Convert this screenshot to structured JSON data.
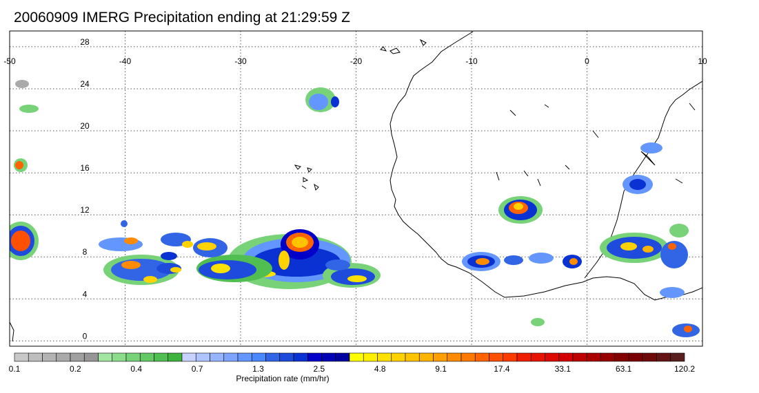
{
  "title": "20060909 IMERG Precipitation ending at 21:29:59 Z",
  "map": {
    "lon_range": [
      -50,
      10
    ],
    "lat_range": [
      -0.5,
      29.5
    ],
    "lon_ticks": [
      "-50",
      "-40",
      "-30",
      "-20",
      "-10",
      "0",
      "10"
    ],
    "lat_ticks": [
      "28",
      "24",
      "20",
      "16",
      "12",
      "8",
      "4",
      "0"
    ],
    "grid": "dotted",
    "coastline_color": "#000000"
  },
  "colorbar": {
    "title": "Precipitation rate (mm/hr)",
    "tick_labels": [
      "0.1",
      "0.2",
      "0.4",
      "0.7",
      "1.3",
      "2.5",
      "4.8",
      "9.1",
      "17.4",
      "33.1",
      "63.1",
      "120.2"
    ],
    "colors": [
      "#c8c8c8",
      "#bebebe",
      "#b4b4b4",
      "#aaaaaa",
      "#a0a0a0",
      "#969696",
      "#a0e6a0",
      "#8cdc8c",
      "#78d278",
      "#64c864",
      "#50be50",
      "#3cb43c",
      "#c8d2ff",
      "#afc3ff",
      "#96b4ff",
      "#7da5ff",
      "#6496ff",
      "#4b87ff",
      "#3264e6",
      "#1e4bdc",
      "#0a32d2",
      "#0000c8",
      "#0000b4",
      "#0000a0",
      "#ffff00",
      "#fff000",
      "#ffe100",
      "#ffd200",
      "#ffc300",
      "#ffb400",
      "#ffa000",
      "#ff8c00",
      "#ff7800",
      "#ff6400",
      "#ff5000",
      "#ff3c00",
      "#f01e00",
      "#e61400",
      "#dc0a00",
      "#d20000",
      "#be0000",
      "#aa0000",
      "#960000",
      "#820000",
      "#780000",
      "#6e0a0a",
      "#641414",
      "#5a1e1e"
    ]
  }
}
